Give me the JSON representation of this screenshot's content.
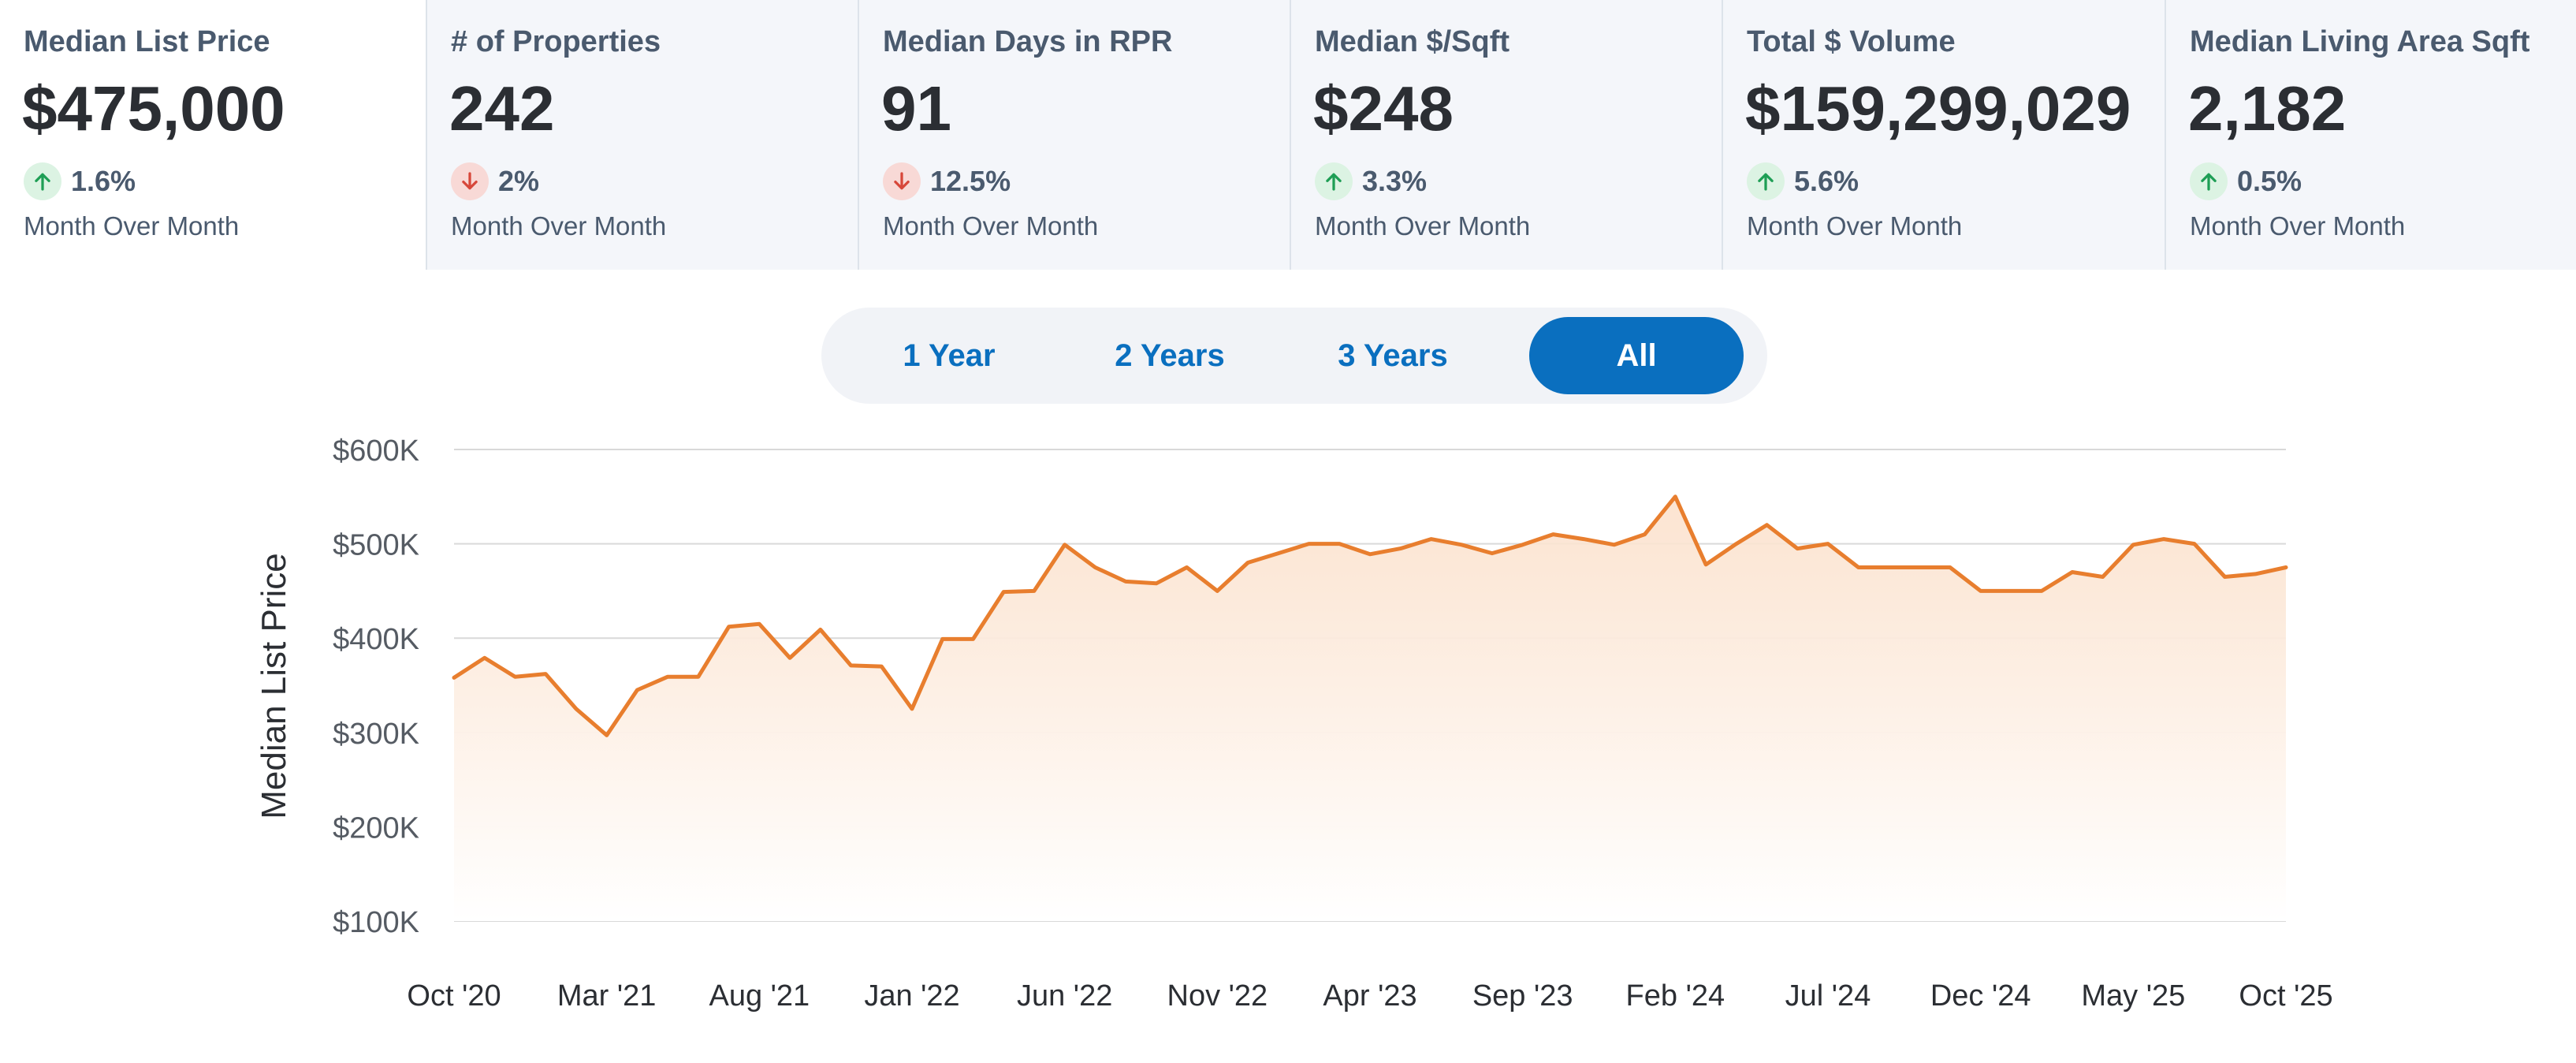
{
  "stats": [
    {
      "label": "Median List Price",
      "value": "$475,000",
      "direction": "up",
      "change": "1.6%",
      "period": "Month Over Month"
    },
    {
      "label": "# of Properties",
      "value": "242",
      "direction": "down",
      "change": "2%",
      "period": "Month Over Month"
    },
    {
      "label": "Median Days in RPR",
      "value": "91",
      "direction": "down",
      "change": "12.5%",
      "period": "Month Over Month"
    },
    {
      "label": "Median $/Sqft",
      "value": "$248",
      "direction": "up",
      "change": "3.3%",
      "period": "Month Over Month"
    },
    {
      "label": "Total $ Volume",
      "value": "$159,299,029",
      "direction": "up",
      "change": "5.6%",
      "period": "Month Over Month"
    },
    {
      "label": "Median Living Area Sqft",
      "value": "2,182",
      "direction": "up",
      "change": "0.5%",
      "period": "Month Over Month"
    }
  ],
  "range_toggle": {
    "options": [
      "1 Year",
      "2 Years",
      "3 Years",
      "All"
    ],
    "selected": "All"
  },
  "colors": {
    "line": "#e87e2e",
    "area_top": "#fbe1cc",
    "up_arrow": "#1e9e55",
    "down_arrow": "#d7473a",
    "accent": "#0a6fbf"
  },
  "chart_data": {
    "type": "area",
    "title": "",
    "xlabel": "",
    "ylabel": "Median List Price",
    "ylim": [
      100000,
      600000
    ],
    "y_ticks": [
      {
        "value": 600000,
        "label": "$600K"
      },
      {
        "value": 500000,
        "label": "$500K"
      },
      {
        "value": 400000,
        "label": "$400K"
      },
      {
        "value": 300000,
        "label": "$300K"
      },
      {
        "value": 200000,
        "label": "$200K"
      },
      {
        "value": 100000,
        "label": "$100K"
      }
    ],
    "x_ticks": [
      {
        "index": 0,
        "label": "Oct '20"
      },
      {
        "index": 5,
        "label": "Mar '21"
      },
      {
        "index": 10,
        "label": "Aug '21"
      },
      {
        "index": 15,
        "label": "Jan '22"
      },
      {
        "index": 20,
        "label": "Jun '22"
      },
      {
        "index": 25,
        "label": "Nov '22"
      },
      {
        "index": 30,
        "label": "Apr '23"
      },
      {
        "index": 35,
        "label": "Sep '23"
      },
      {
        "index": 40,
        "label": "Feb '24"
      },
      {
        "index": 45,
        "label": "Jul '24"
      },
      {
        "index": 50,
        "label": "Dec '24"
      },
      {
        "index": 55,
        "label": "May '25"
      },
      {
        "index": 60,
        "label": "Oct '25"
      }
    ],
    "series": [
      {
        "name": "Median List Price",
        "start": "Oct 2020",
        "end": "Oct 2025",
        "values": [
          358000,
          379000,
          359000,
          362000,
          325000,
          297000,
          345000,
          359000,
          359000,
          412000,
          415000,
          379000,
          409000,
          371000,
          370000,
          325000,
          399000,
          399000,
          449000,
          450000,
          499000,
          475000,
          460000,
          458000,
          475000,
          450000,
          480000,
          490000,
          500000,
          500000,
          489000,
          495000,
          505000,
          499000,
          490000,
          499000,
          510000,
          505000,
          499000,
          510000,
          550000,
          478000,
          500000,
          520000,
          495000,
          500000,
          475000,
          475000,
          475000,
          475000,
          450000,
          450000,
          450000,
          470000,
          465000,
          499000,
          505000,
          500000,
          465000,
          468000,
          475000
        ]
      }
    ]
  }
}
